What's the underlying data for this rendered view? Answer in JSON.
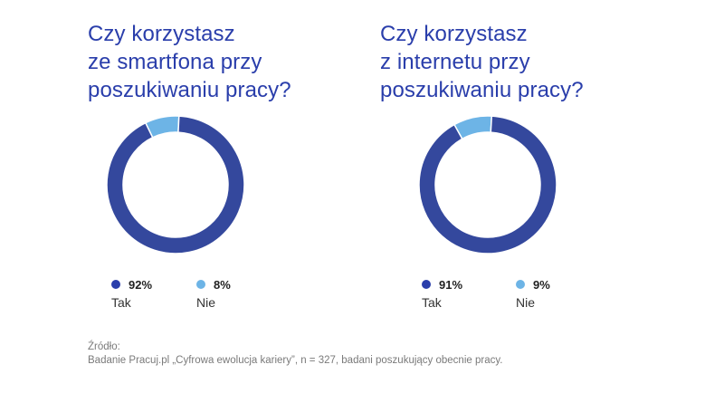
{
  "chart_data": [
    {
      "type": "pie",
      "title_lines": [
        "Czy korzystasz",
        "ze smartfona przy",
        "poszukiwaniu pracy?"
      ],
      "categories": [
        "Tak",
        "Nie"
      ],
      "values": [
        92,
        8
      ],
      "value_labels": [
        "92%",
        "8%"
      ],
      "colors": [
        "#34489d",
        "#6db4e6"
      ],
      "legend_placement": "bottom"
    },
    {
      "type": "pie",
      "title_lines": [
        "Czy korzystasz",
        "z internetu przy",
        "poszukiwaniu pracy?"
      ],
      "categories": [
        "Tak",
        "Nie"
      ],
      "values": [
        91,
        9
      ],
      "value_labels": [
        "91%",
        "9%"
      ],
      "colors": [
        "#34489d",
        "#6db4e6"
      ],
      "legend_placement": "bottom"
    }
  ],
  "source": {
    "heading": "Źródło:",
    "text": "Badanie Pracuj.pl „Cyfrowa ewolucja kariery”, n = 327, badani poszukujący obecnie pracy."
  },
  "colors": {
    "title": "#2a3eab",
    "dot_tak": "#2a3eab",
    "dot_nie": "#6db4e6"
  }
}
